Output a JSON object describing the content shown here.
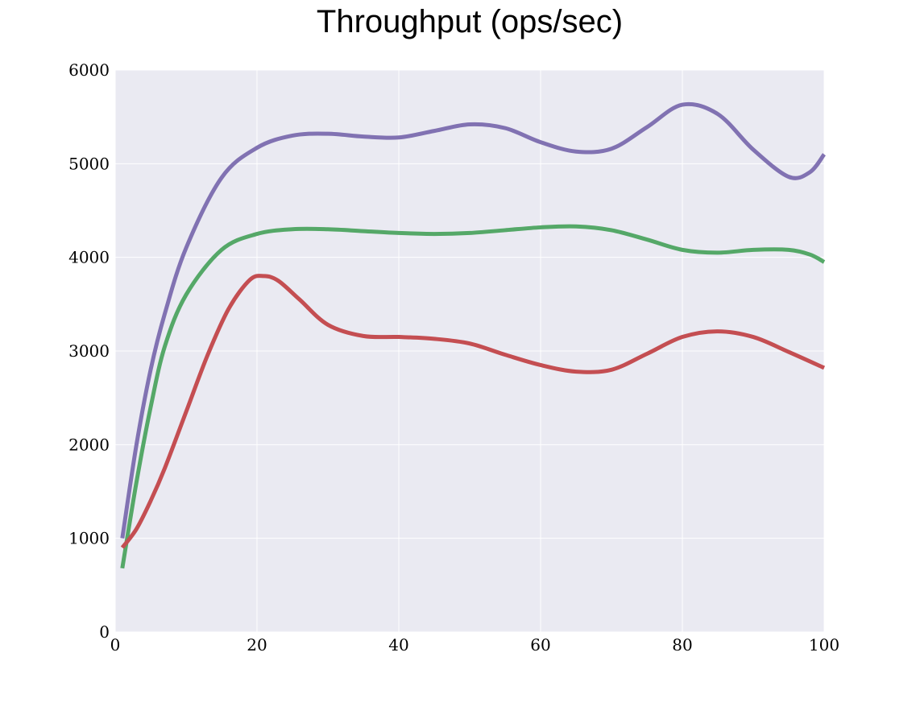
{
  "chart_data": {
    "type": "line",
    "title": "Throughput (ops/sec)",
    "xlabel": "",
    "ylabel": "",
    "xlim": [
      0,
      100
    ],
    "ylim": [
      0,
      6000
    ],
    "x_ticks": [
      0,
      20,
      40,
      60,
      80,
      100
    ],
    "y_ticks": [
      0,
      1000,
      2000,
      3000,
      4000,
      5000,
      6000
    ],
    "grid": true,
    "legend": "none",
    "background": "#eaeaf2",
    "grid_color": "#ffffff",
    "series": [
      {
        "color": "#8172b2",
        "x": [
          1,
          3,
          5,
          7,
          10,
          15,
          20,
          25,
          30,
          35,
          40,
          45,
          50,
          55,
          60,
          65,
          70,
          75,
          80,
          85,
          90,
          95,
          98,
          100
        ],
        "y": [
          1000,
          2000,
          2800,
          3400,
          4100,
          4850,
          5170,
          5300,
          5320,
          5290,
          5280,
          5350,
          5420,
          5380,
          5230,
          5130,
          5160,
          5390,
          5630,
          5530,
          5150,
          4860,
          4910,
          5100
        ]
      },
      {
        "color": "#55a868",
        "x": [
          1,
          3,
          5,
          7,
          10,
          15,
          20,
          25,
          30,
          35,
          40,
          45,
          50,
          55,
          60,
          65,
          70,
          75,
          80,
          85,
          90,
          95,
          98,
          100
        ],
        "y": [
          680,
          1600,
          2400,
          3050,
          3600,
          4080,
          4250,
          4300,
          4300,
          4280,
          4260,
          4250,
          4260,
          4290,
          4320,
          4330,
          4290,
          4190,
          4080,
          4050,
          4080,
          4080,
          4030,
          3950
        ]
      },
      {
        "color": "#c44e52",
        "x": [
          1,
          3,
          5,
          7,
          10,
          13,
          16,
          19,
          21,
          23,
          26,
          30,
          35,
          40,
          45,
          50,
          55,
          60,
          65,
          70,
          75,
          80,
          85,
          90,
          95,
          100
        ],
        "y": [
          900,
          1100,
          1400,
          1750,
          2350,
          2950,
          3450,
          3760,
          3800,
          3750,
          3550,
          3280,
          3160,
          3150,
          3130,
          3080,
          2960,
          2850,
          2780,
          2800,
          2970,
          3150,
          3210,
          3150,
          2990,
          2820
        ]
      }
    ]
  }
}
